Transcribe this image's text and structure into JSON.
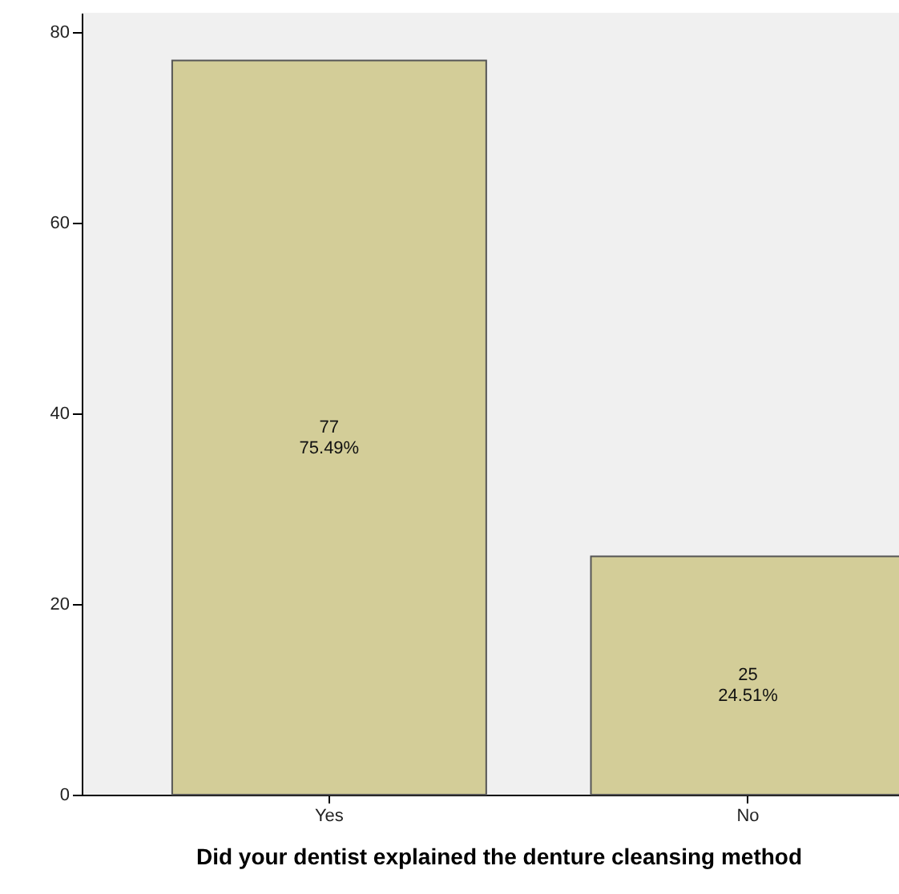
{
  "chart_data": {
    "type": "bar",
    "xlabel": "Did your dentist explained the denture cleansing method",
    "categories": [
      "Yes",
      "No"
    ],
    "values": [
      77,
      25
    ],
    "color": "#d3cd98",
    "value_labels": [
      "77\n75.49%",
      "25\n24.51%"
    ],
    "ylim": [
      0,
      82
    ],
    "yticks": [
      0,
      20,
      40,
      60,
      80
    ],
    "grid": false
  }
}
